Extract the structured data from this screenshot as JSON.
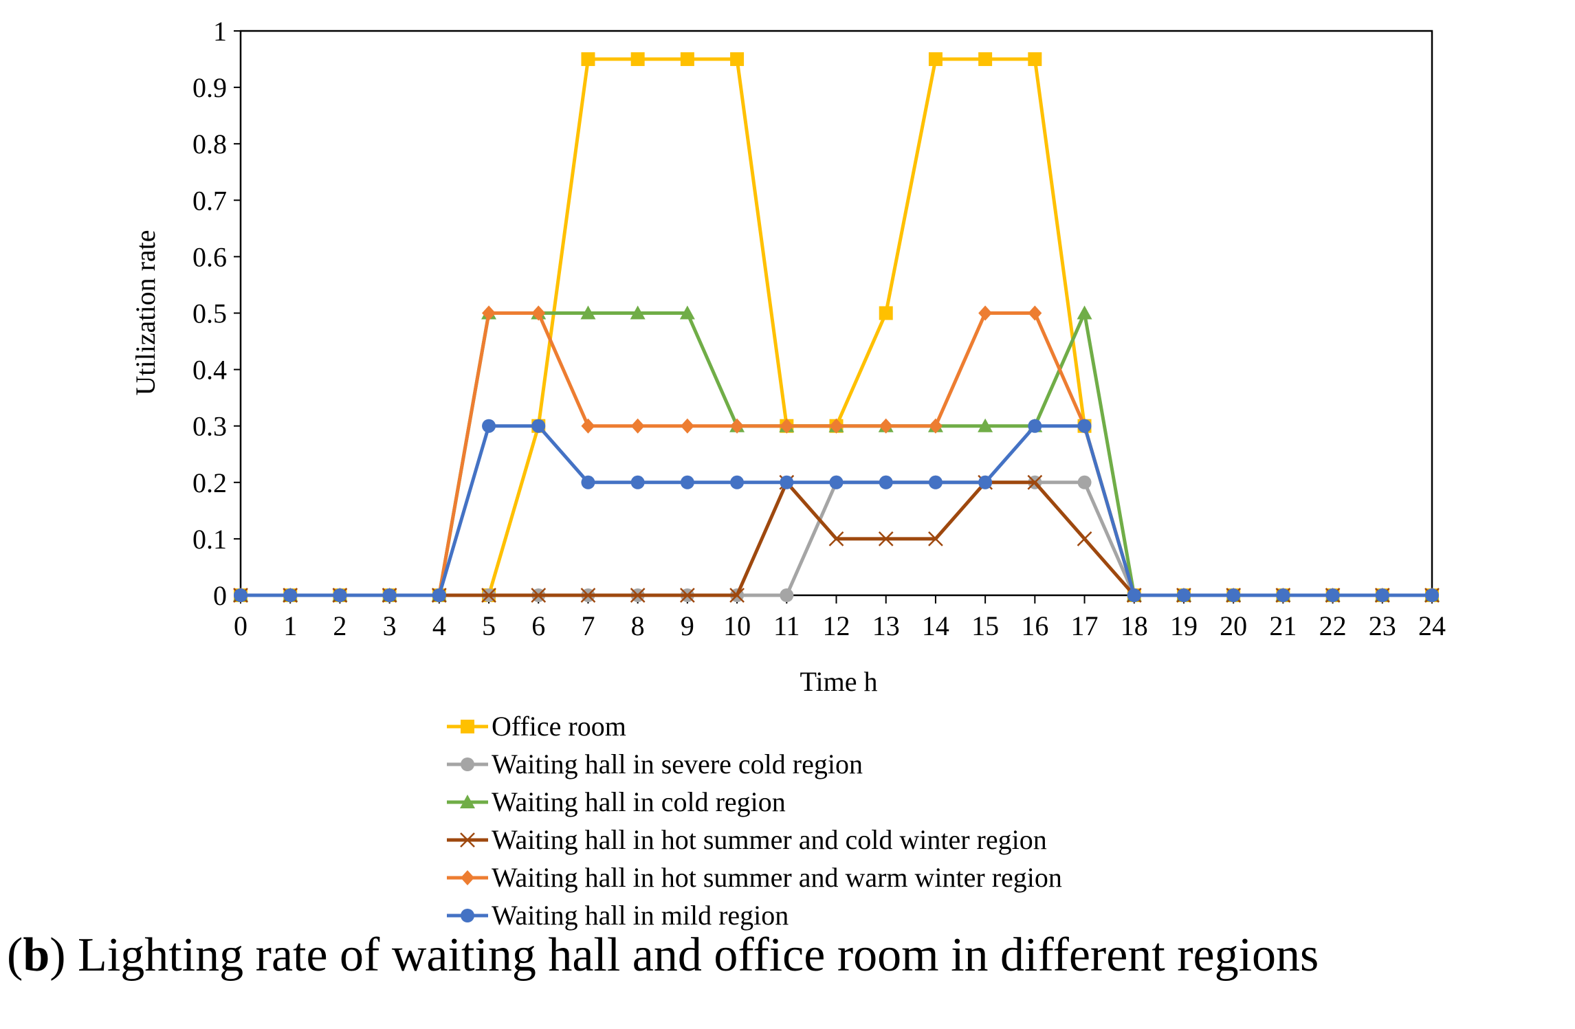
{
  "chart_data": {
    "type": "line",
    "title": "",
    "xlabel": "Time h",
    "ylabel": "Utilization rate",
    "x": [
      0,
      1,
      2,
      3,
      4,
      5,
      6,
      7,
      8,
      9,
      10,
      11,
      12,
      13,
      14,
      15,
      16,
      17,
      18,
      19,
      20,
      21,
      22,
      23,
      24
    ],
    "x_tick_labels": [
      "0",
      "1",
      "2",
      "3",
      "4",
      "5",
      "6",
      "7",
      "8",
      "9",
      "10",
      "11",
      "12",
      "13",
      "14",
      "15",
      "16",
      "17",
      "18",
      "19",
      "20",
      "21",
      "22",
      "23",
      "24"
    ],
    "y_tick_labels": [
      "0",
      "0.1",
      "0.2",
      "0.3",
      "0.4",
      "0.5",
      "0.6",
      "0.7",
      "0.8",
      "0.9",
      "1"
    ],
    "xlim": [
      0,
      24
    ],
    "ylim": [
      0,
      1
    ],
    "grid": false,
    "legend_position": "bottom",
    "series": [
      {
        "name": "Office room",
        "color": "#FFC000",
        "marker": "square",
        "values": [
          0,
          0,
          0,
          0,
          0,
          0,
          0.3,
          0.95,
          0.95,
          0.95,
          0.95,
          0.3,
          0.3,
          0.5,
          0.95,
          0.95,
          0.95,
          0.3,
          0,
          0,
          0,
          0,
          0,
          0,
          0
        ]
      },
      {
        "name": "Waiting hall in severe cold region",
        "color": "#A5A5A5",
        "marker": "circle",
        "values": [
          0,
          0,
          0,
          0,
          0,
          0,
          0,
          0,
          0,
          0,
          0,
          0,
          0.2,
          0.2,
          0.2,
          0.2,
          0.2,
          0.2,
          0,
          0,
          0,
          0,
          0,
          0,
          0
        ]
      },
      {
        "name": "Waiting hall in cold region",
        "color": "#70AD47",
        "marker": "triangle",
        "values": [
          0,
          0,
          0,
          0,
          0,
          0.5,
          0.5,
          0.5,
          0.5,
          0.5,
          0.3,
          0.3,
          0.3,
          0.3,
          0.3,
          0.3,
          0.3,
          0.5,
          0,
          0,
          0,
          0,
          0,
          0,
          0
        ]
      },
      {
        "name": "Waiting hall in hot summer and cold winter region",
        "color": "#9E480E",
        "marker": "x",
        "values": [
          0,
          0,
          0,
          0,
          0,
          0,
          0,
          0,
          0,
          0,
          0,
          0.2,
          0.1,
          0.1,
          0.1,
          0.2,
          0.2,
          0.1,
          0,
          0,
          0,
          0,
          0,
          0,
          0
        ]
      },
      {
        "name": "Waiting hall in hot summer and warm winter region",
        "color": "#ED7D31",
        "marker": "diamond",
        "values": [
          0,
          0,
          0,
          0,
          0,
          0.5,
          0.5,
          0.3,
          0.3,
          0.3,
          0.3,
          0.3,
          0.3,
          0.3,
          0.3,
          0.5,
          0.5,
          0.3,
          0,
          0,
          0,
          0,
          0,
          0,
          0
        ]
      },
      {
        "name": "Waiting hall in mild region",
        "color": "#4472C4",
        "marker": "circle",
        "values": [
          0,
          0,
          0,
          0,
          0,
          0.3,
          0.3,
          0.2,
          0.2,
          0.2,
          0.2,
          0.2,
          0.2,
          0.2,
          0.2,
          0.2,
          0.3,
          0.3,
          0,
          0,
          0,
          0,
          0,
          0,
          0
        ]
      }
    ]
  },
  "caption": {
    "prefix": "(",
    "letter": "b",
    "text": ") Lighting rate of waiting hall and office room in different regions"
  }
}
